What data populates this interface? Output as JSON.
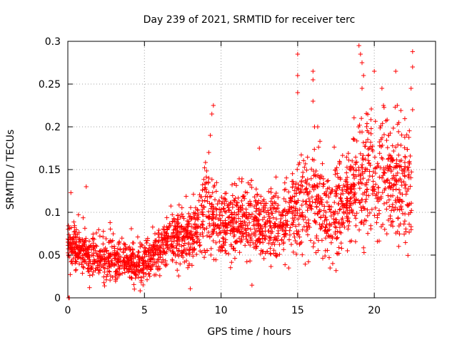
{
  "chart_data": {
    "type": "scatter",
    "title": "Day 239 of 2021, SRMTID for receiver terc",
    "xlabel": "GPS time / hours",
    "ylabel": "SRMTID / TECUs",
    "xlim": [
      0,
      24
    ],
    "ylim": [
      0,
      0.3
    ],
    "xticks": [
      0,
      5,
      10,
      15,
      20
    ],
    "xtick_labels": [
      "0",
      "5",
      "10",
      "15",
      "20"
    ],
    "yticks": [
      0,
      0.05,
      0.1,
      0.15,
      0.2,
      0.25,
      0.3
    ],
    "ytick_labels": [
      "0",
      "0.05",
      "0.1",
      "0.15",
      "0.2",
      "0.25",
      "0.3"
    ],
    "grid": true,
    "marker": "plus",
    "color": "#ff0000",
    "series": [
      {
        "name": "SRMTID",
        "trend": [
          [
            0.0,
            0.06,
            0.015
          ],
          [
            1.0,
            0.055,
            0.018
          ],
          [
            2.0,
            0.048,
            0.016
          ],
          [
            3.0,
            0.045,
            0.016
          ],
          [
            4.0,
            0.04,
            0.014
          ],
          [
            5.0,
            0.042,
            0.015
          ],
          [
            6.0,
            0.055,
            0.016
          ],
          [
            7.0,
            0.075,
            0.02
          ],
          [
            8.0,
            0.065,
            0.02
          ],
          [
            9.0,
            0.1,
            0.03
          ],
          [
            10.0,
            0.085,
            0.025
          ],
          [
            11.0,
            0.09,
            0.025
          ],
          [
            12.0,
            0.09,
            0.025
          ],
          [
            13.0,
            0.085,
            0.025
          ],
          [
            14.0,
            0.085,
            0.025
          ],
          [
            15.0,
            0.11,
            0.03
          ],
          [
            16.0,
            0.12,
            0.04
          ],
          [
            17.0,
            0.095,
            0.03
          ],
          [
            18.0,
            0.11,
            0.035
          ],
          [
            19.0,
            0.14,
            0.045
          ],
          [
            20.0,
            0.15,
            0.05
          ],
          [
            21.0,
            0.14,
            0.045
          ],
          [
            22.0,
            0.13,
            0.04
          ],
          [
            22.5,
            0.12,
            0.04
          ]
        ],
        "n_points": 2400,
        "spikes": [
          [
            9.5,
            0.225
          ],
          [
            9.4,
            0.215
          ],
          [
            9.3,
            0.19
          ],
          [
            9.2,
            0.17
          ],
          [
            15.0,
            0.285
          ],
          [
            15.0,
            0.26
          ],
          [
            15.0,
            0.24
          ],
          [
            16.0,
            0.265
          ],
          [
            16.0,
            0.255
          ],
          [
            16.0,
            0.23
          ],
          [
            16.1,
            0.2
          ],
          [
            19.0,
            0.295
          ],
          [
            19.1,
            0.285
          ],
          [
            19.2,
            0.275
          ],
          [
            19.3,
            0.26
          ],
          [
            19.2,
            0.245
          ],
          [
            20.0,
            0.265
          ],
          [
            20.5,
            0.245
          ],
          [
            20.6,
            0.225
          ],
          [
            21.4,
            0.265
          ],
          [
            21.5,
            0.225
          ],
          [
            21.6,
            0.205
          ],
          [
            22.5,
            0.288
          ],
          [
            22.5,
            0.27
          ],
          [
            22.4,
            0.245
          ],
          [
            22.5,
            0.22
          ],
          [
            1.2,
            0.13
          ],
          [
            0.2,
            0.123
          ],
          [
            12.5,
            0.175
          ],
          [
            0.1,
            0.0
          ],
          [
            0.05,
            0.0
          ]
        ]
      }
    ]
  }
}
